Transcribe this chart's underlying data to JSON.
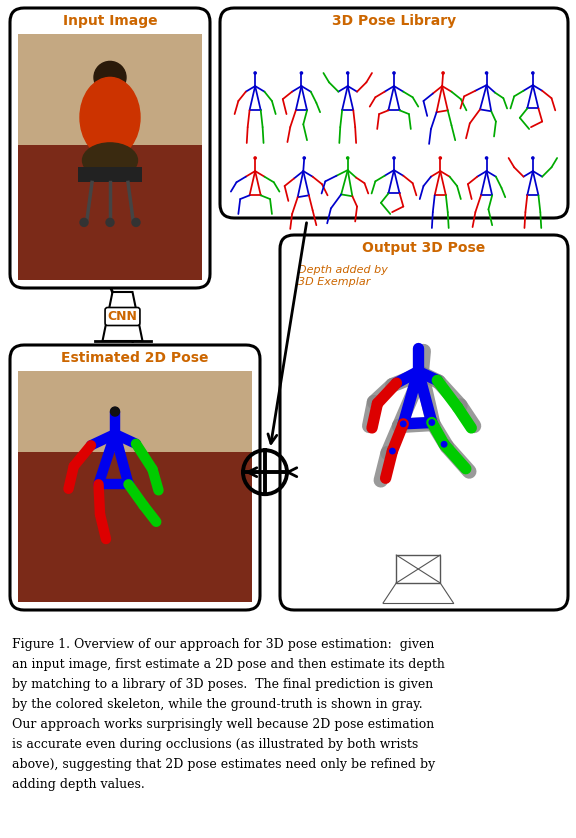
{
  "figure_width": 5.76,
  "figure_height": 8.38,
  "bg_color": "#ffffff",
  "caption_lines": [
    "Figure 1. Overview of our approach for 3D pose estimation:  given",
    "an input image, first estimate a 2D pose and then estimate its depth",
    "by matching to a library of 3D poses.  The final prediction is given",
    "by the colored skeleton, while the ground-truth is shown in gray.",
    "Our approach works surprisingly well because 2D pose estimation",
    "is accurate even during occlusions (as illustrated by both wrists",
    "above), suggesting that 2D pose estimates need only be refined by",
    "adding depth values."
  ],
  "label_input_image": "Input Image",
  "label_pose_library": "3D Pose Library",
  "label_estimated_2d": "Estimated 2D Pose",
  "label_output_3d": "Output 3D Pose",
  "label_cnn": "CNN",
  "label_depth": "Depth added by\n3D Exemplar",
  "title_color": "#cc6600",
  "box_color": "#000000",
  "text_color": "#000000"
}
